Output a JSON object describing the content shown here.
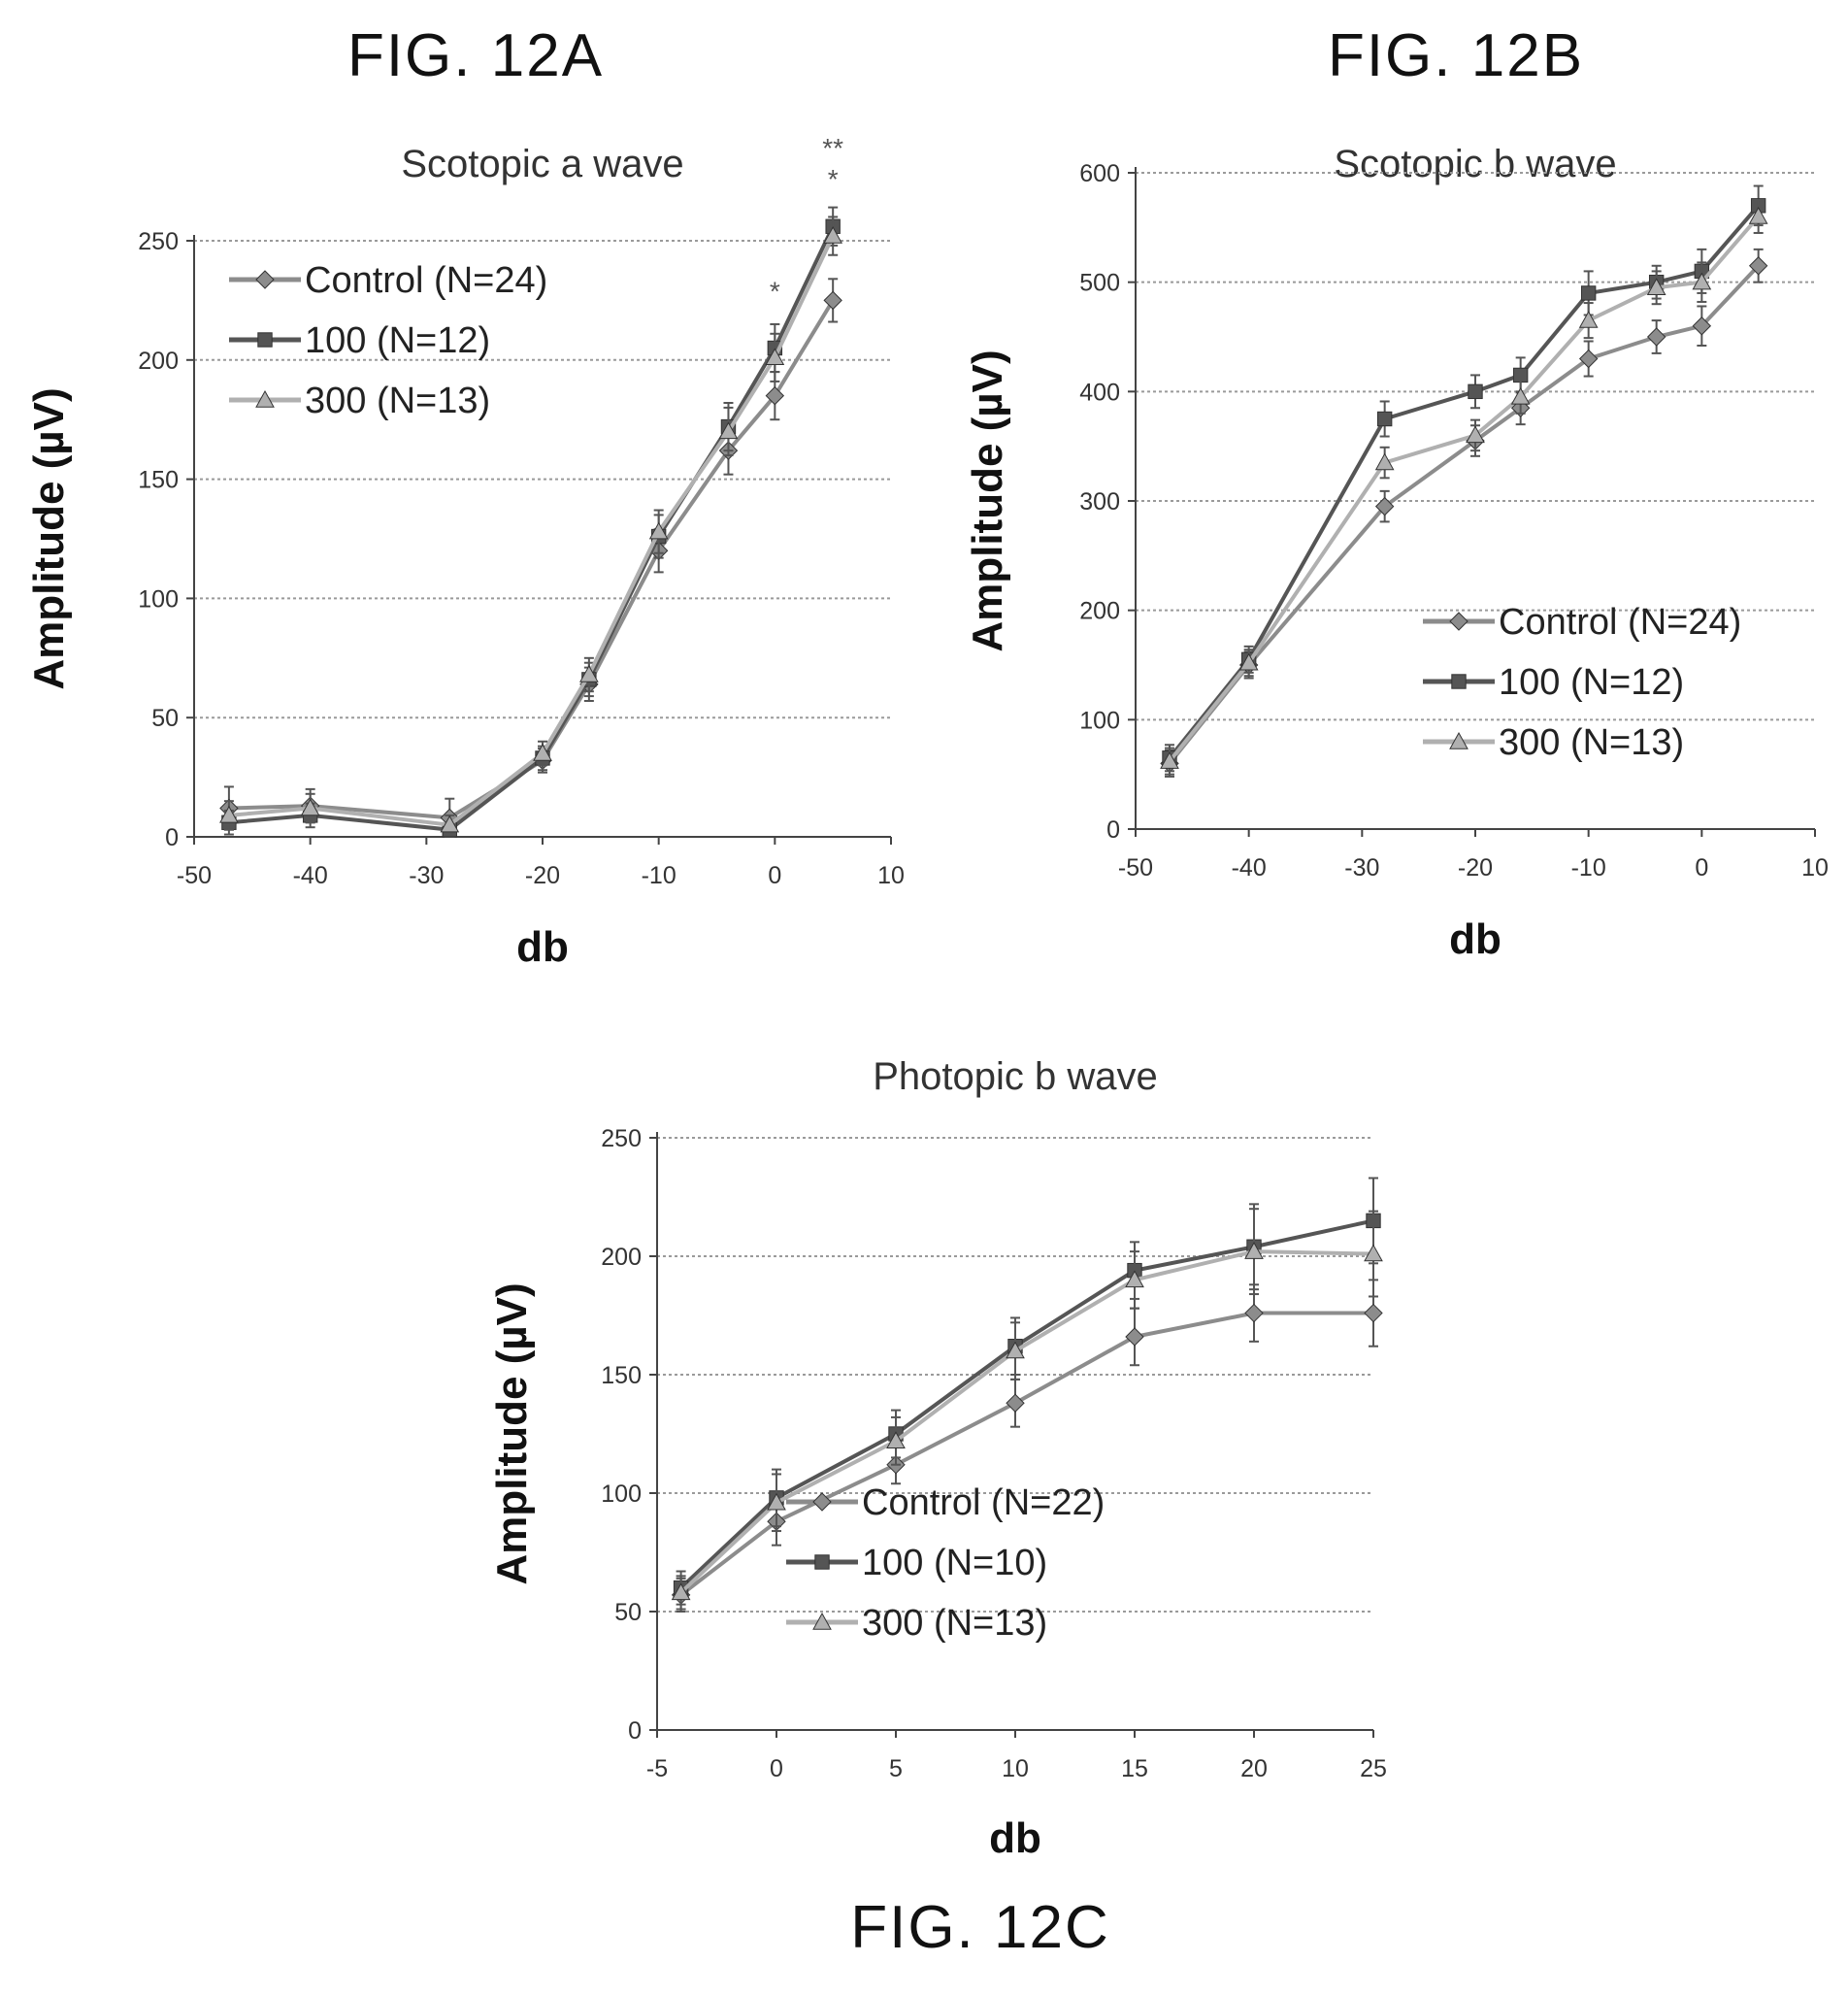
{
  "figure_labels": {
    "a": "FIG. 12A",
    "b": "FIG. 12B",
    "c": "FIG. 12C"
  },
  "colors": {
    "grid": "#9a9a9a",
    "axis": "#444444",
    "Control": "#8c8c8c",
    "100": "#555555",
    "300": "#b0b0b0"
  },
  "chart_data": [
    {
      "id": "a",
      "type": "line",
      "title": "Scotopic a wave",
      "xlabel": "db",
      "ylabel": "Amplitude (µV)",
      "xlim": [
        -50,
        10
      ],
      "ylim": [
        0,
        250
      ],
      "xticks": [
        -50,
        -40,
        -30,
        -20,
        -10,
        0,
        10
      ],
      "yticks": [
        0,
        50,
        100,
        150,
        200,
        250
      ],
      "grid": true,
      "legend_position": "top-left",
      "x": [
        -47,
        -40,
        -28,
        -20,
        -16,
        -10,
        -4,
        0,
        5
      ],
      "series": [
        {
          "name": "Control (N=24)",
          "values": [
            12,
            13,
            8,
            32,
            64,
            120,
            162,
            185,
            225
          ],
          "error": [
            9,
            7,
            8,
            5,
            7,
            9,
            10,
            10,
            9
          ]
        },
        {
          "name": "100 (N=12)",
          "values": [
            6,
            9,
            3,
            33,
            66,
            126,
            172,
            205,
            256
          ],
          "error": [
            5,
            5,
            3,
            5,
            7,
            9,
            10,
            10,
            8
          ]
        },
        {
          "name": "300 (N=13)",
          "values": [
            9,
            12,
            5,
            35,
            68,
            128,
            170,
            201,
            252
          ],
          "error": [
            6,
            6,
            4,
            5,
            7,
            9,
            10,
            10,
            8
          ]
        }
      ],
      "annotations": [
        {
          "text": "**",
          "x": 5,
          "y": 285
        },
        {
          "text": "*",
          "x": 5,
          "y": 272
        },
        {
          "text": "*",
          "x": 0,
          "y": 225
        }
      ]
    },
    {
      "id": "b",
      "type": "line",
      "title": "Scotopic b wave",
      "xlabel": "db",
      "ylabel": "Amplitude (µV)",
      "xlim": [
        -50,
        10
      ],
      "ylim": [
        0,
        600
      ],
      "xticks": [
        -50,
        -40,
        -30,
        -20,
        -10,
        0,
        10
      ],
      "yticks": [
        0,
        100,
        200,
        300,
        400,
        500,
        600
      ],
      "grid": true,
      "legend_position": "center-right",
      "x": [
        -47,
        -40,
        -28,
        -20,
        -16,
        -10,
        -4,
        0,
        5
      ],
      "series": [
        {
          "name": "Control (N=24)",
          "values": [
            60,
            150,
            295,
            355,
            385,
            430,
            450,
            460,
            515
          ],
          "error": [
            12,
            12,
            14,
            14,
            15,
            16,
            15,
            18,
            15
          ]
        },
        {
          "name": "100 (N=12)",
          "values": [
            65,
            155,
            375,
            400,
            415,
            490,
            500,
            510,
            570
          ],
          "error": [
            12,
            12,
            16,
            15,
            16,
            20,
            15,
            20,
            18
          ]
        },
        {
          "name": "300 (N=13)",
          "values": [
            62,
            152,
            335,
            360,
            395,
            465,
            495,
            500,
            560
          ],
          "error": [
            12,
            12,
            14,
            14,
            15,
            16,
            15,
            18,
            15
          ]
        }
      ]
    },
    {
      "id": "c",
      "type": "line",
      "title": "Photopic b wave",
      "xlabel": "db",
      "ylabel": "Amplitude (µV)",
      "xlim": [
        -5,
        25
      ],
      "ylim": [
        0,
        250
      ],
      "xticks": [
        -5,
        0,
        5,
        10,
        15,
        20,
        25
      ],
      "yticks": [
        0,
        50,
        100,
        150,
        200,
        250
      ],
      "grid": true,
      "legend_position": "center-right",
      "x": [
        -4,
        0,
        5,
        10,
        15,
        20,
        25
      ],
      "series": [
        {
          "name": "Control (N=22)",
          "values": [
            57,
            88,
            112,
            138,
            166,
            176,
            176
          ],
          "error": [
            7,
            10,
            8,
            10,
            12,
            12,
            14
          ]
        },
        {
          "name": "100 (N=10)",
          "values": [
            60,
            98,
            125,
            162,
            194,
            204,
            215
          ],
          "error": [
            7,
            12,
            10,
            12,
            12,
            18,
            18
          ]
        },
        {
          "name": "300 (N=13)",
          "values": [
            58,
            96,
            122,
            160,
            190,
            202,
            201
          ],
          "error": [
            7,
            12,
            10,
            12,
            12,
            18,
            18
          ]
        }
      ]
    }
  ]
}
